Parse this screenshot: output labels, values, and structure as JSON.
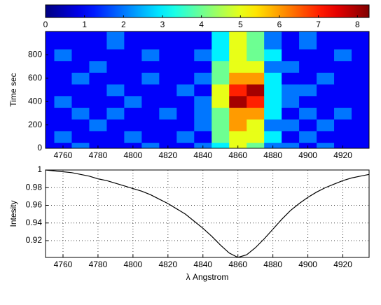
{
  "chart_data": [
    {
      "type": "contour",
      "colormap": "jet",
      "clim": [
        0,
        8.3
      ],
      "cticks": [
        0,
        1,
        2,
        3,
        4,
        5,
        6,
        7,
        8
      ],
      "ylabel": "Time  sec",
      "x": [
        4750,
        4760,
        4770,
        4780,
        4790,
        4800,
        4810,
        4820,
        4830,
        4840,
        4850,
        4860,
        4870,
        4880,
        4890,
        4900,
        4910,
        4920,
        4930
      ],
      "y": [
        0,
        100,
        200,
        300,
        400,
        500,
        600,
        700,
        800,
        900
      ],
      "z": [
        [
          1,
          1,
          2,
          1,
          1,
          1,
          2,
          1,
          1,
          2,
          3,
          5,
          4,
          2,
          2,
          1,
          2,
          1,
          1
        ],
        [
          1,
          2,
          1,
          1,
          1,
          2,
          1,
          1,
          2,
          1,
          4,
          5,
          5,
          3,
          1,
          2,
          1,
          1,
          1
        ],
        [
          1,
          1,
          1,
          2,
          1,
          1,
          1,
          1,
          1,
          2,
          4,
          6,
          5,
          2,
          2,
          1,
          2,
          1,
          1
        ],
        [
          1,
          1,
          2,
          1,
          2,
          1,
          1,
          2,
          1,
          2,
          4,
          6,
          6,
          3,
          1,
          2,
          1,
          2,
          1
        ],
        [
          1,
          2,
          1,
          1,
          1,
          2,
          1,
          1,
          1,
          2,
          5,
          8,
          7,
          3,
          2,
          1,
          1,
          1,
          1
        ],
        [
          1,
          1,
          1,
          1,
          2,
          1,
          1,
          1,
          2,
          1,
          5,
          7,
          8,
          3,
          2,
          2,
          1,
          1,
          1
        ],
        [
          1,
          1,
          2,
          1,
          1,
          1,
          2,
          1,
          1,
          2,
          4,
          6,
          6,
          3,
          1,
          1,
          2,
          1,
          1
        ],
        [
          1,
          1,
          1,
          2,
          1,
          1,
          1,
          1,
          1,
          1,
          4,
          5,
          5,
          2,
          2,
          1,
          1,
          1,
          1
        ],
        [
          1,
          2,
          1,
          1,
          1,
          1,
          2,
          1,
          1,
          2,
          3,
          5,
          4,
          3,
          1,
          1,
          1,
          2,
          1
        ],
        [
          1,
          1,
          1,
          1,
          2,
          1,
          1,
          1,
          1,
          1,
          3,
          5,
          4,
          2,
          1,
          2,
          1,
          1,
          1
        ]
      ],
      "xlim": [
        4750,
        4935
      ],
      "xticks": [
        4760,
        4780,
        4800,
        4820,
        4840,
        4860,
        4880,
        4900,
        4920
      ],
      "ylim": [
        0,
        1000
      ],
      "yticks": [
        0,
        200,
        400,
        600,
        800
      ],
      "grid": false
    },
    {
      "type": "line",
      "xlabel": "λ  Angstrom",
      "ylabel": "Intesity",
      "color": "#000000",
      "x": [
        4750,
        4755,
        4760,
        4765,
        4770,
        4775,
        4780,
        4785,
        4790,
        4795,
        4800,
        4805,
        4810,
        4815,
        4820,
        4825,
        4830,
        4835,
        4840,
        4845,
        4850,
        4855,
        4860,
        4865,
        4870,
        4875,
        4880,
        4885,
        4890,
        4895,
        4900,
        4905,
        4910,
        4915,
        4920,
        4925,
        4930,
        4935
      ],
      "values": [
        1.0,
        0.999,
        0.998,
        0.997,
        0.995,
        0.993,
        0.99,
        0.988,
        0.985,
        0.982,
        0.979,
        0.976,
        0.972,
        0.967,
        0.962,
        0.956,
        0.95,
        0.942,
        0.934,
        0.925,
        0.915,
        0.906,
        0.901,
        0.904,
        0.912,
        0.922,
        0.933,
        0.944,
        0.954,
        0.962,
        0.969,
        0.975,
        0.98,
        0.984,
        0.988,
        0.991,
        0.993,
        0.995
      ],
      "xlim": [
        4750,
        4935
      ],
      "xticks": [
        4760,
        4780,
        4800,
        4820,
        4840,
        4860,
        4880,
        4900,
        4920
      ],
      "ylim": [
        0.901,
        1.0
      ],
      "yticks": [
        0.92,
        0.94,
        0.96,
        0.98,
        1
      ],
      "grid": true
    }
  ]
}
